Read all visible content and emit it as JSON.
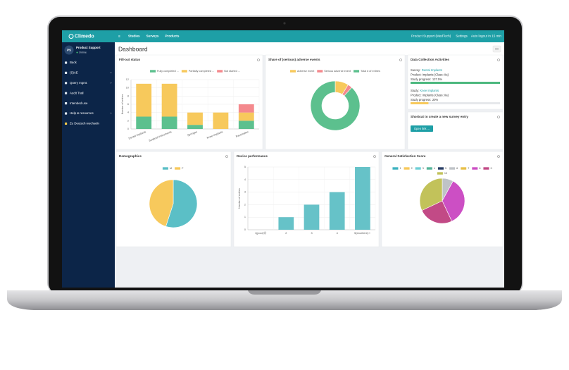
{
  "topbar": {
    "logo": "Climedo",
    "nav": [
      "Studies",
      "Surveys",
      "Products"
    ],
    "account": "Product Support (MedTech)",
    "settings": "Settings",
    "logout": "Auto logout in 15 min"
  },
  "sidebar": {
    "avatar": "PS",
    "user": "Product Support",
    "status": "Online",
    "menu": [
      "Back",
      "(S)AE",
      "Query mgmt.",
      "Audit Trail",
      "Intended use",
      "Help & resources",
      "Zu Deutsch wechseln"
    ]
  },
  "page_title": "Dashboard",
  "widgets": [
    {
      "title": "Fill-out status",
      "chart": {
        "type": "bar",
        "stacked": true,
        "ylabel": "Number of entries",
        "categories": [
          "Dental Implants",
          "Surgical Instruments",
          "Syringes",
          "Knee Implants",
          "Pacemaker"
        ],
        "series": [
          {
            "name": "Fully completed ...",
            "color": "#5cc08e",
            "values": [
              3,
              3,
              1,
              0,
              2
            ]
          },
          {
            "name": "Partially completed ...",
            "color": "#f7c95c",
            "values": [
              8,
              8,
              3,
              4,
              2
            ]
          },
          {
            "name": "Not started ...",
            "color": "#f4898d",
            "values": [
              0,
              0,
              0,
              0,
              2
            ]
          }
        ],
        "ylim": [
          0,
          12
        ],
        "yticks": [
          0,
          2,
          4,
          6,
          8,
          10,
          12
        ],
        "grid": true
      }
    },
    {
      "title": "Share of (serious) adverse events",
      "chart": {
        "type": "doughnut",
        "categories": [
          "Adverse event",
          "Serious adverse event",
          "Total # of entries"
        ],
        "values": [
          3,
          1,
          30
        ],
        "colors": [
          "#f7c95c",
          "#f4898d",
          "#5cc08e"
        ]
      }
    },
    {
      "title": "Data Collection Activities",
      "entries": [
        {
          "label": "Survey:",
          "link": "Dental Implants",
          "product": "Product: Implants (Class: IIa)",
          "progress_label": "Study progress:",
          "progress": 137.5,
          "progress_text": "137.5%",
          "color": "#4cb87e"
        },
        {
          "label": "Study:",
          "link": "Knee Implants",
          "product": "Product: Implants (Class: IIa)",
          "progress_label": "Study progress:",
          "progress": 20,
          "progress_text": "20%",
          "color": "#f7c95c"
        }
      ]
    },
    {
      "title": "Shortcut to create a new survey entry",
      "button": "Open link ..."
    },
    {
      "title": "Demographics",
      "chart": {
        "type": "pie",
        "categories": [
          "M",
          "F"
        ],
        "values": [
          55,
          45
        ],
        "colors": [
          "#5bbfc6",
          "#f7c95c"
        ]
      }
    },
    {
      "title": "Device performance",
      "chart": {
        "type": "bar",
        "ylabel": "Number of entries",
        "categories": [
          "1(poor)☹",
          "2",
          "3",
          "4",
          "5(excellent)☺"
        ],
        "values": [
          0,
          1,
          2,
          3,
          5
        ],
        "color": "#66c2c8",
        "ylim": [
          0,
          5
        ],
        "yticks": [
          0,
          1,
          2,
          3,
          4,
          5
        ],
        "grid": true
      }
    },
    {
      "title": "General Satisfaction Score",
      "chart": {
        "type": "pie",
        "categories": [
          "1",
          "2",
          "3",
          "4",
          "5",
          "6",
          "7",
          "8",
          "9",
          "10"
        ],
        "values": [
          0,
          0,
          0,
          0,
          0,
          8,
          0,
          35,
          25,
          32
        ],
        "colors": [
          "#3fb3c0",
          "#f7c95c",
          "#6fcfd6",
          "#56b59a",
          "#2a3f66",
          "#bfc3c7",
          "#e8c04a",
          "#cc4fc4",
          "#c24a86",
          "#c2c25a"
        ]
      }
    }
  ]
}
